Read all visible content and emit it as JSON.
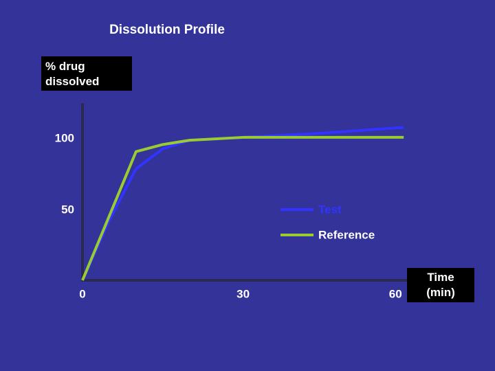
{
  "chart_data": {
    "type": "line",
    "title": "Dissolution Profile",
    "y_label": "% drug dissolved",
    "x_label": "Time (min)",
    "x": [
      0,
      5,
      10,
      15,
      20,
      30,
      45,
      60
    ],
    "series": [
      {
        "name": "Test",
        "color": "#3333ff",
        "values": [
          0,
          42,
          78,
          92,
          98,
          100,
          103,
          107
        ]
      },
      {
        "name": "Reference",
        "color": "#99cc33",
        "values": [
          0,
          45,
          90,
          95,
          98,
          100,
          100,
          100
        ]
      }
    ],
    "xlim": [
      0,
      61
    ],
    "ylim": [
      0,
      124
    ],
    "xticks": [
      0,
      30,
      60
    ],
    "yticks": [
      50,
      100
    ],
    "grid": false
  }
}
